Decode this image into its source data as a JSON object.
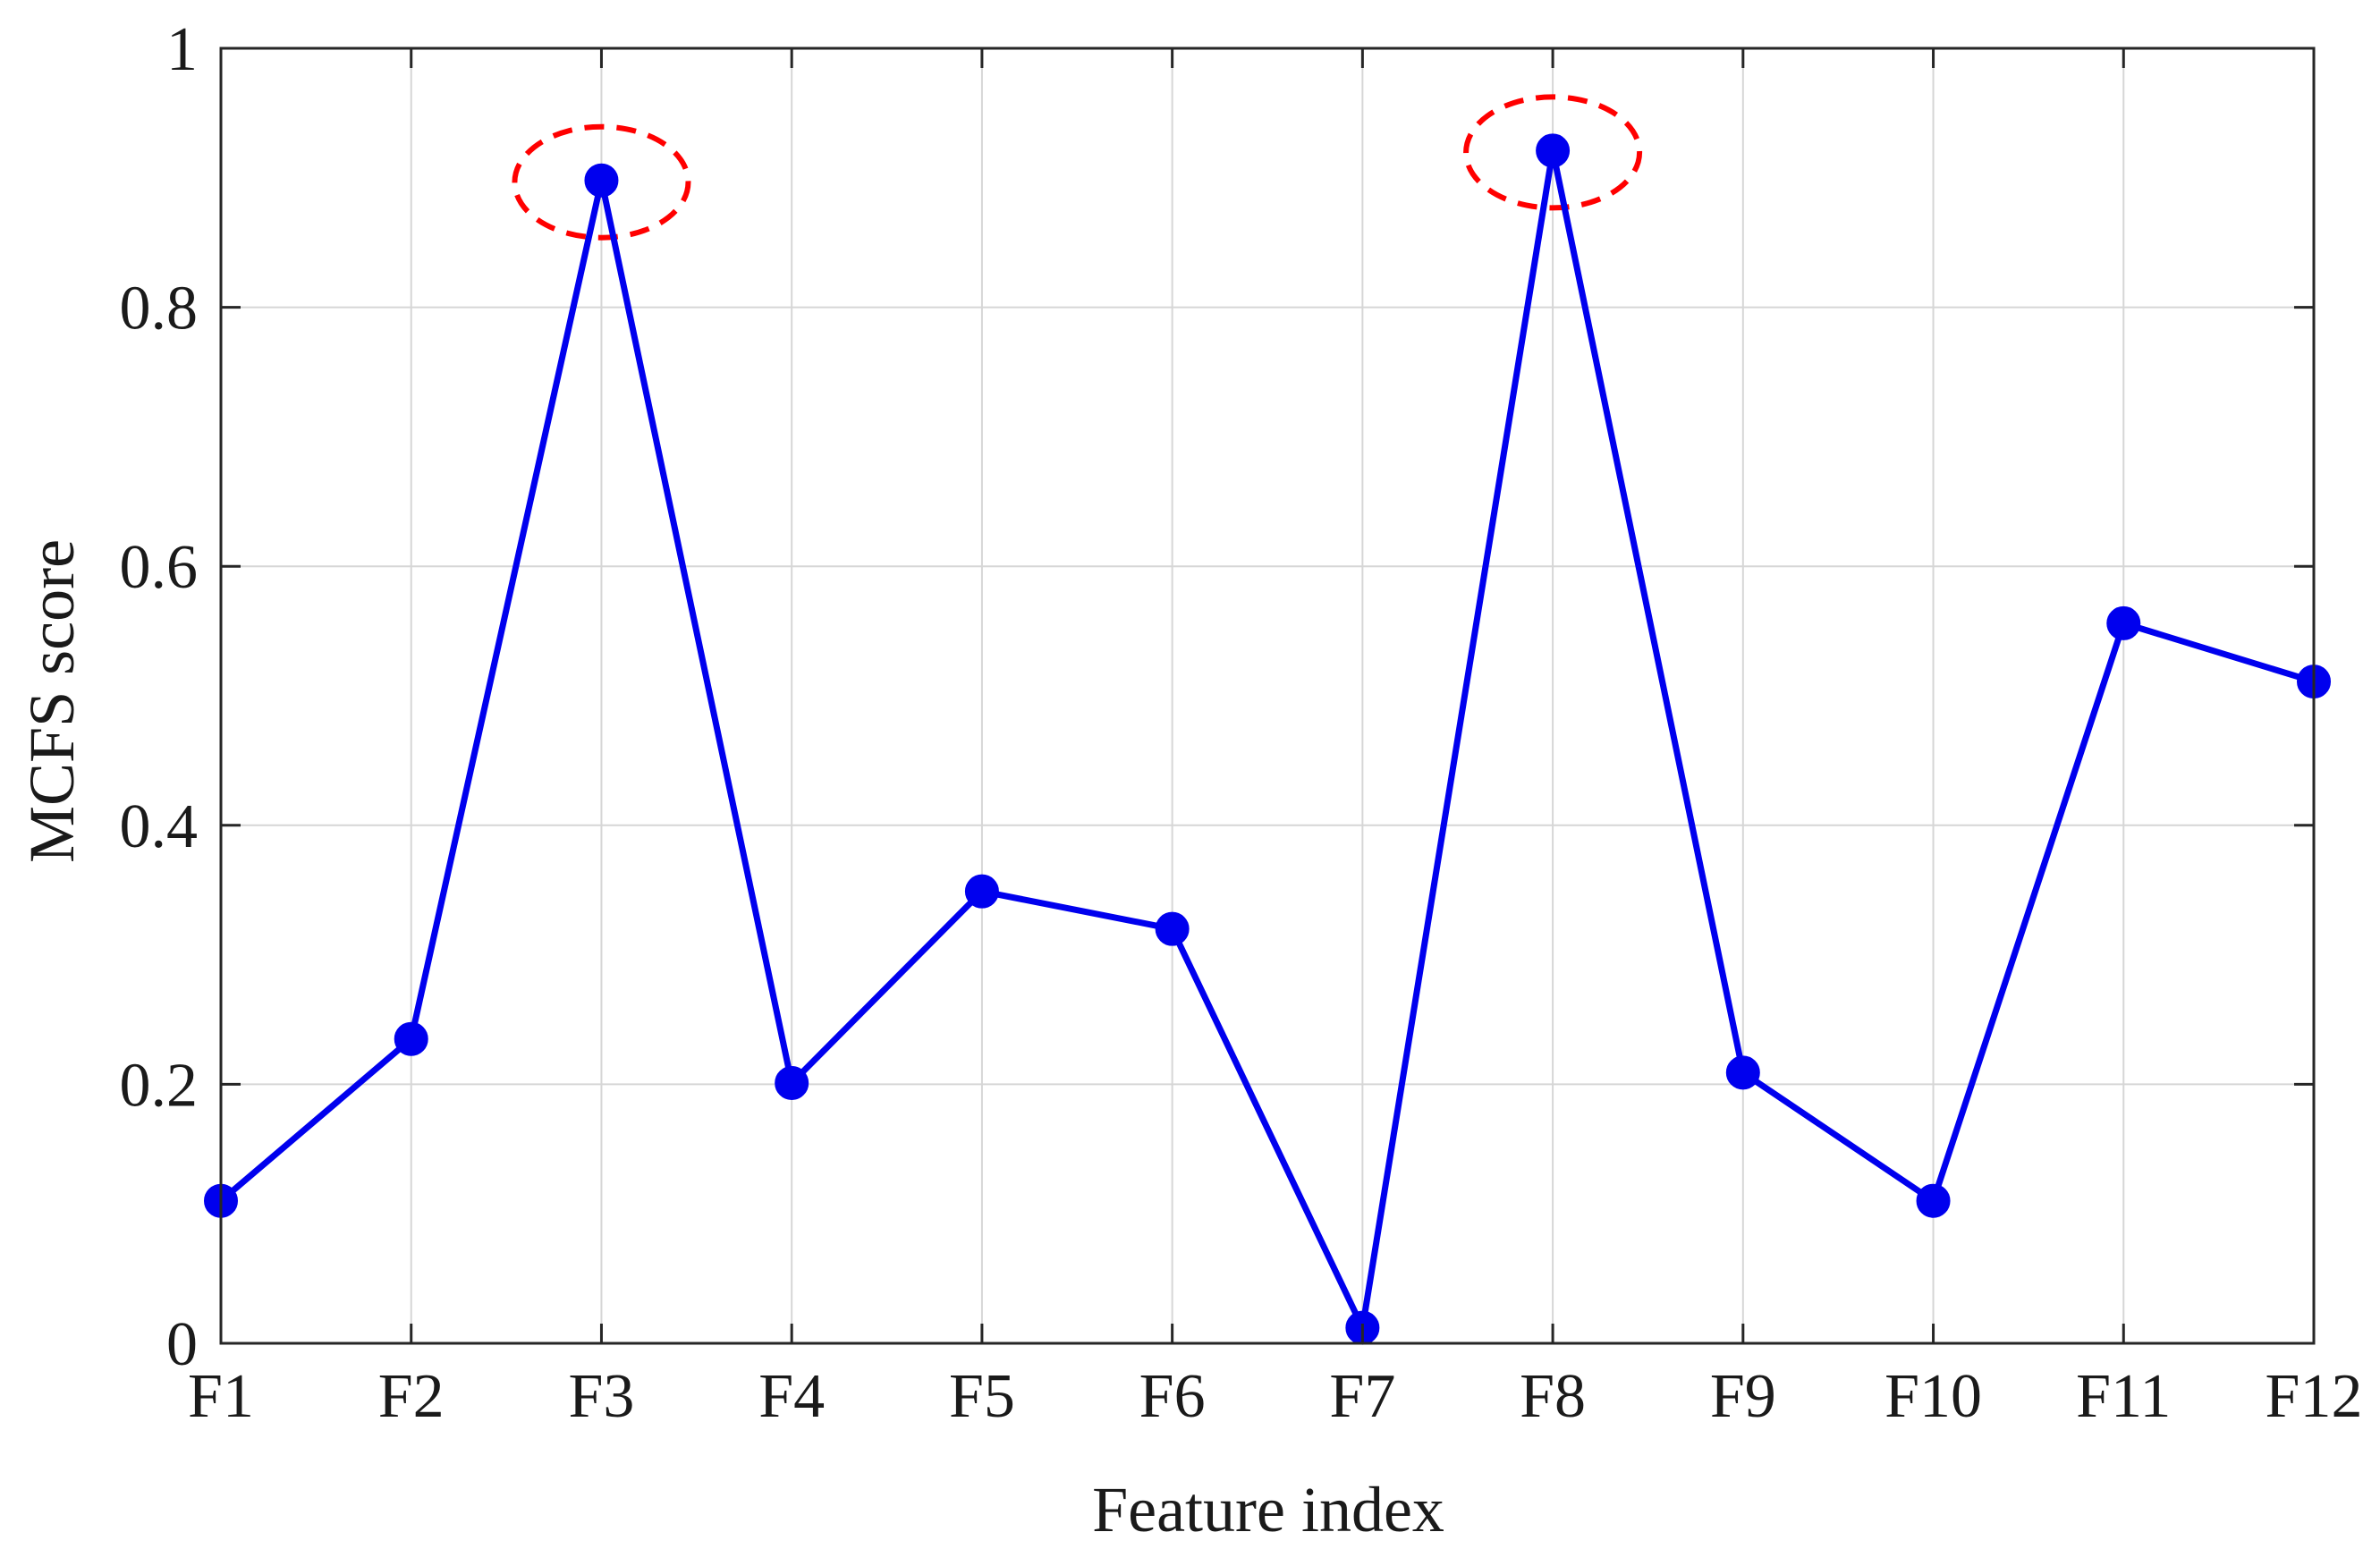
{
  "chart_data": {
    "type": "line",
    "title": "",
    "xlabel": "Feature index",
    "ylabel": "MCFS score",
    "categories": [
      "F1",
      "F2",
      "F3",
      "F4",
      "F5",
      "F6",
      "F7",
      "F8",
      "F9",
      "F10",
      "F11",
      "F12"
    ],
    "series": [
      {
        "values": [
          0.11,
          0.235,
          0.898,
          0.201,
          0.349,
          0.32,
          0.012,
          0.921,
          0.209,
          0.11,
          0.556,
          0.511
        ]
      }
    ],
    "ylim": [
      0,
      1
    ],
    "yticks": [
      0,
      0.2,
      0.4,
      0.6,
      0.8,
      1
    ],
    "ytick_labels": [
      "0",
      "0.2",
      "0.4",
      "0.6",
      "0.8",
      "1"
    ],
    "grid": true,
    "highlighted_categories": [
      "F3",
      "F8"
    ],
    "colors": {
      "series": "#0000ee",
      "highlight": "#ff0000",
      "grid": "#d6d6d6",
      "axes": "#262626"
    }
  }
}
